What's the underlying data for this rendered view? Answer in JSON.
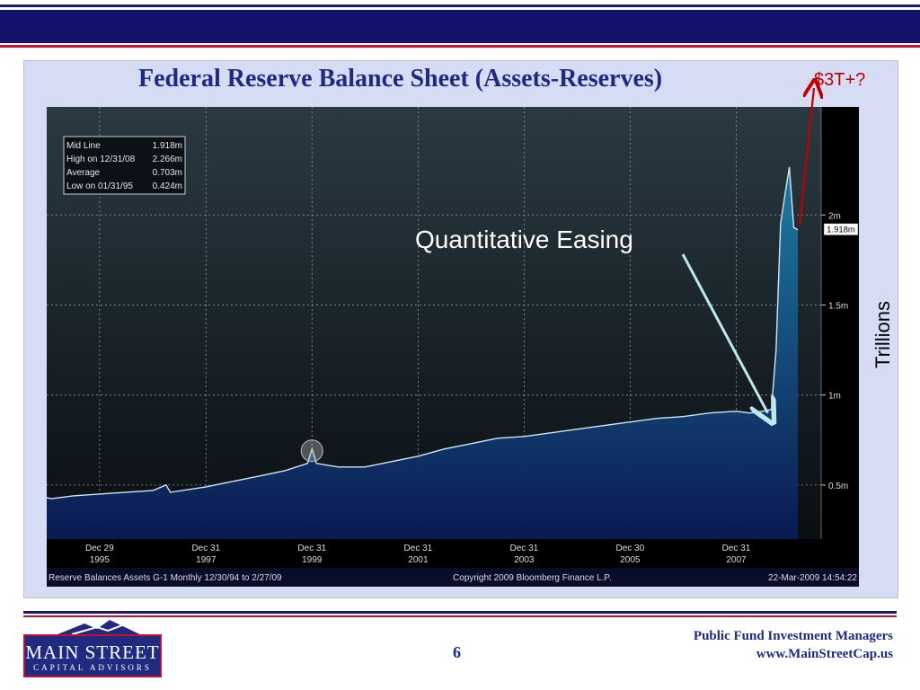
{
  "slide": {
    "title": "Federal Reserve Balance Sheet (Assets-Reserves)",
    "annotation_top": "$3T+?",
    "annotation_qe": "Quantitative Easing",
    "axis_unit": "Trillions",
    "page_number": "6",
    "firm_line1": "Public Fund Investment Managers",
    "firm_line2": "www.MainStreetCap.us",
    "logo_name": "MAIN STREET",
    "logo_sub": "CAPITAL ADVISORS"
  },
  "chart_data": {
    "type": "area",
    "title": "",
    "xlabel": "",
    "ylabel": "",
    "ylim": [
      0.2,
      2.6
    ],
    "y_ticks": [
      0.5,
      1,
      1.5,
      2
    ],
    "y_tick_labels": [
      "0.5m",
      "1m",
      "1.5m",
      "2m"
    ],
    "x_range": [
      "1994-12-30",
      "2009-02-27"
    ],
    "x_tick_dates": [
      "1995-12-29",
      "1997-12-31",
      "1999-12-31",
      "2001-12-31",
      "2003-12-31",
      "2005-12-30",
      "2007-12-31"
    ],
    "x_tick_labels": [
      [
        "Dec 29",
        "1995"
      ],
      [
        "Dec 31",
        "1997"
      ],
      [
        "Dec 31",
        "1999"
      ],
      [
        "Dec 31",
        "2001"
      ],
      [
        "Dec 31",
        "2003"
      ],
      [
        "Dec 30",
        "2005"
      ],
      [
        "Dec 31",
        "2007"
      ]
    ],
    "grid": true,
    "last_value_label": "1.918m",
    "series": [
      {
        "name": "Reserve Balances Assets",
        "points": [
          [
            "1994-12-30",
            0.43
          ],
          [
            "1995-01-31",
            0.424
          ],
          [
            "1995-06-30",
            0.44
          ],
          [
            "1995-12-29",
            0.45
          ],
          [
            "1996-06-28",
            0.46
          ],
          [
            "1996-12-31",
            0.47
          ],
          [
            "1997-03-31",
            0.5
          ],
          [
            "1997-04-30",
            0.46
          ],
          [
            "1997-12-31",
            0.49
          ],
          [
            "1998-06-30",
            0.52
          ],
          [
            "1998-12-31",
            0.55
          ],
          [
            "1999-06-30",
            0.58
          ],
          [
            "1999-11-30",
            0.62
          ],
          [
            "1999-12-31",
            0.7
          ],
          [
            "2000-01-31",
            0.62
          ],
          [
            "2000-06-30",
            0.6
          ],
          [
            "2000-12-29",
            0.6
          ],
          [
            "2001-06-29",
            0.63
          ],
          [
            "2001-12-31",
            0.66
          ],
          [
            "2002-06-28",
            0.7
          ],
          [
            "2002-12-31",
            0.73
          ],
          [
            "2003-06-30",
            0.76
          ],
          [
            "2003-12-31",
            0.77
          ],
          [
            "2004-06-30",
            0.79
          ],
          [
            "2004-12-31",
            0.81
          ],
          [
            "2005-06-30",
            0.83
          ],
          [
            "2005-12-30",
            0.85
          ],
          [
            "2006-06-30",
            0.87
          ],
          [
            "2006-12-29",
            0.88
          ],
          [
            "2007-06-29",
            0.9
          ],
          [
            "2007-12-31",
            0.91
          ],
          [
            "2008-03-31",
            0.9
          ],
          [
            "2008-06-30",
            0.91
          ],
          [
            "2008-08-29",
            0.92
          ],
          [
            "2008-09-30",
            1.25
          ],
          [
            "2008-10-31",
            1.95
          ],
          [
            "2008-11-28",
            2.1
          ],
          [
            "2008-12-31",
            2.266
          ],
          [
            "2009-01-30",
            1.93
          ],
          [
            "2009-02-27",
            1.918
          ]
        ]
      }
    ],
    "legend_box": [
      {
        "label": "Mid Line",
        "value": "1.918m"
      },
      {
        "label": "High on  12/31/08",
        "value": "2.266m"
      },
      {
        "label": "Average",
        "value": "0.703m"
      },
      {
        "label": "Low on  01/31/95",
        "value": "0.424m"
      }
    ],
    "footer_left": "Reserve Balances Assets     G-1   Monthly  12/30/94 to 2/27/09",
    "footer_center": "Copyright 2009 Bloomberg Finance L.P.",
    "footer_right": "22-Mar-2009 14:54:22"
  },
  "colors": {
    "title": "#1f2a80",
    "annotation_red": "#c00000",
    "chart_bg_top": "#2a3a42",
    "chart_bg_bottom": "#0a0e12",
    "fill_top": "#1e7fa8",
    "fill_bottom": "#0a1a55",
    "line": "#cfe6f0",
    "qe_arrow": "#bfe8ee"
  }
}
